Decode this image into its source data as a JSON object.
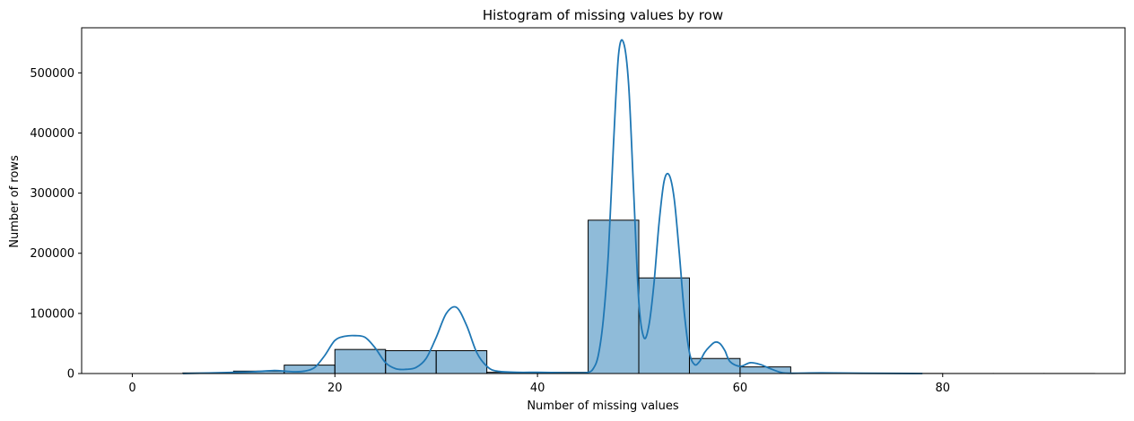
{
  "chart_data": {
    "type": "bar",
    "title": "Histogram of missing values by row",
    "xlabel": "Number of missing values",
    "ylabel": "Number of rows",
    "xlim": [
      -5,
      98
    ],
    "ylim": [
      0,
      575000
    ],
    "x_ticks": [
      0,
      20,
      40,
      60,
      80
    ],
    "y_ticks": [
      0,
      100000,
      200000,
      300000,
      400000,
      500000
    ],
    "bar_color": "#1f77b4",
    "bar_fill_opacity": 0.5,
    "bar_edge_color": "#000000",
    "kde_color": "#1f77b4",
    "grid": false,
    "bins": [
      {
        "x0": 5,
        "x1": 10,
        "value": 1000
      },
      {
        "x0": 10,
        "x1": 15,
        "value": 4000
      },
      {
        "x0": 15,
        "x1": 20,
        "value": 14000
      },
      {
        "x0": 20,
        "x1": 25,
        "value": 40000
      },
      {
        "x0": 25,
        "x1": 30,
        "value": 38000
      },
      {
        "x0": 30,
        "x1": 35,
        "value": 38000
      },
      {
        "x0": 35,
        "x1": 40,
        "value": 2000
      },
      {
        "x0": 40,
        "x1": 45,
        "value": 2000
      },
      {
        "x0": 45,
        "x1": 50,
        "value": 255000
      },
      {
        "x0": 50,
        "x1": 55,
        "value": 159000
      },
      {
        "x0": 55,
        "x1": 60,
        "value": 25000
      },
      {
        "x0": 60,
        "x1": 65,
        "value": 11000
      },
      {
        "x0": 65,
        "x1": 70,
        "value": 500
      },
      {
        "x0": 70,
        "x1": 75,
        "value": 300
      },
      {
        "x0": 75,
        "x1": 80,
        "value": 200
      },
      {
        "x0": 80,
        "x1": 85,
        "value": 100
      },
      {
        "x0": 85,
        "x1": 90,
        "value": 100
      },
      {
        "x0": 90,
        "x1": 95,
        "value": 100
      }
    ],
    "kde": {
      "x": [
        5,
        8,
        10,
        12,
        14,
        15,
        16,
        17,
        18,
        19,
        20,
        21,
        22,
        23,
        24,
        25,
        26,
        27,
        28,
        29,
        30,
        31,
        32,
        33,
        34,
        35,
        36,
        38,
        40,
        42,
        44,
        45,
        45.5,
        46,
        46.5,
        47,
        47.5,
        48,
        48.5,
        49,
        49.5,
        50,
        50.5,
        51,
        51.5,
        52,
        52.5,
        53,
        53.5,
        54,
        54.5,
        55,
        55.5,
        56,
        56.5,
        57,
        57.5,
        58,
        58.5,
        59,
        60,
        61,
        62,
        63,
        64,
        65,
        68,
        72,
        78
      ],
      "y": [
        0,
        1000,
        2000,
        3000,
        5000,
        4000,
        3000,
        4000,
        10000,
        30000,
        55000,
        62000,
        63000,
        60000,
        42000,
        18000,
        8000,
        7000,
        10000,
        25000,
        60000,
        100000,
        110000,
        80000,
        35000,
        12000,
        4000,
        2000,
        2000,
        1500,
        1000,
        2000,
        8000,
        30000,
        90000,
        200000,
        380000,
        530000,
        550000,
        480000,
        300000,
        120000,
        60000,
        80000,
        150000,
        250000,
        320000,
        330000,
        290000,
        200000,
        100000,
        35000,
        15000,
        20000,
        35000,
        45000,
        52000,
        50000,
        38000,
        20000,
        12000,
        18000,
        15000,
        8000,
        2000,
        500,
        1000,
        500,
        0
      ]
    }
  }
}
